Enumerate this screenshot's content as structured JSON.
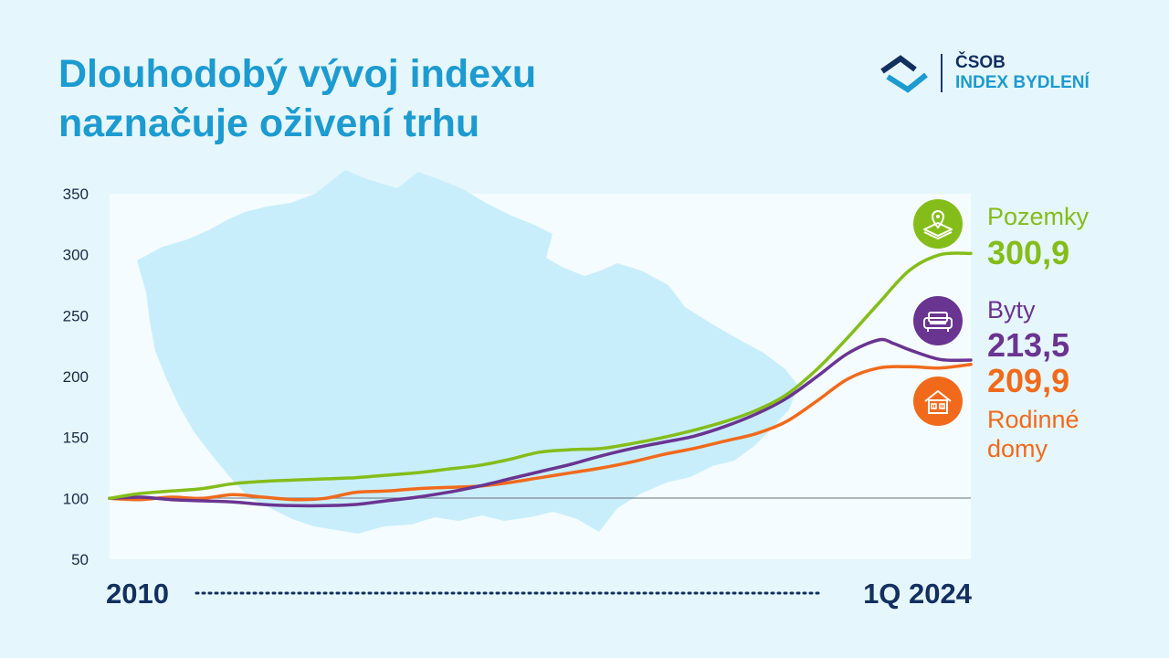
{
  "header": {
    "title_line1": "Dlouhodobý vývoj indexu",
    "title_line2": "naznačuje oživení trhu"
  },
  "logo": {
    "line1": "ČSOB",
    "line2": "INDEX BYDLENÍ",
    "icon": "csob-house-mark-icon"
  },
  "colors": {
    "background": "#e6f6fd",
    "title": "#1c9bd0",
    "dark_navy": "#12305f",
    "pozemky": "#84bd1a",
    "byty": "#6a3491",
    "rodinne_domy": "#f16a1b",
    "baseline": "#7f8b96"
  },
  "legend": {
    "pozemky": {
      "label": "Pozemky",
      "value": "300,9",
      "icon": "land-plot-location-icon"
    },
    "byty": {
      "label": "Byty",
      "value": "213,5",
      "icon": "sofa-icon"
    },
    "rodinne_domy": {
      "label_line1": "Rodinné",
      "label_line2": "domy",
      "value": "209,9",
      "icon": "house-icon"
    }
  },
  "chart_data": {
    "type": "line",
    "x_start_label": "2010",
    "x_end_label": "1Q 2024",
    "x_range": [
      2010.0,
      2024.0
    ],
    "ylim": [
      50,
      350
    ],
    "yticks": [
      "350",
      "300",
      "250",
      "200",
      "150",
      "100",
      "50"
    ],
    "baseline": 100,
    "grid": false,
    "background_decoration": "map-of-czech-republic",
    "series": [
      {
        "name": "Pozemky",
        "color": "#84bd1a",
        "x": [
          2010.0,
          2010.5,
          2011.0,
          2011.5,
          2012.0,
          2012.5,
          2013.0,
          2013.5,
          2014.0,
          2014.5,
          2015.0,
          2015.5,
          2016.0,
          2016.5,
          2017.0,
          2017.5,
          2018.0,
          2018.5,
          2019.0,
          2019.5,
          2020.0,
          2020.5,
          2021.0,
          2021.5,
          2022.0,
          2022.5,
          2023.0,
          2023.5,
          2024.0
        ],
        "values": [
          100,
          104,
          106,
          108,
          112,
          114,
          115,
          116,
          117,
          119,
          121,
          124,
          127,
          132,
          138,
          140,
          141,
          145,
          150,
          156,
          163,
          172,
          185,
          206,
          232,
          260,
          287,
          300,
          301
        ]
      },
      {
        "name": "Byty",
        "color": "#6a3491",
        "x": [
          2010.0,
          2010.5,
          2011.0,
          2011.5,
          2012.0,
          2012.5,
          2013.0,
          2013.5,
          2014.0,
          2014.5,
          2015.0,
          2015.5,
          2016.0,
          2016.5,
          2017.0,
          2017.5,
          2018.0,
          2018.5,
          2019.0,
          2019.5,
          2020.0,
          2020.5,
          2021.0,
          2021.5,
          2022.0,
          2022.5,
          2022.75,
          2023.0,
          2023.5,
          2024.0
        ],
        "values": [
          100,
          101,
          99,
          98,
          97,
          95,
          94,
          94,
          95,
          98,
          101,
          105,
          110,
          116,
          122,
          128,
          135,
          141,
          146,
          151,
          159,
          169,
          182,
          200,
          219,
          230,
          227,
          222,
          214,
          213.5
        ]
      },
      {
        "name": "Rodinné domy",
        "color": "#f16a1b",
        "x": [
          2010.0,
          2010.5,
          2011.0,
          2011.5,
          2012.0,
          2012.5,
          2013.0,
          2013.5,
          2014.0,
          2014.5,
          2015.0,
          2015.5,
          2016.0,
          2016.5,
          2017.0,
          2017.5,
          2018.0,
          2018.5,
          2019.0,
          2019.5,
          2020.0,
          2020.5,
          2021.0,
          2021.5,
          2022.0,
          2022.5,
          2023.0,
          2023.5,
          2024.0
        ],
        "values": [
          100,
          99,
          101,
          100,
          103,
          101,
          99,
          100,
          105,
          106,
          108,
          109,
          110,
          113,
          117,
          121,
          125,
          130,
          136,
          141,
          147,
          153,
          163,
          180,
          198,
          207,
          208,
          207,
          209.9
        ]
      }
    ]
  }
}
